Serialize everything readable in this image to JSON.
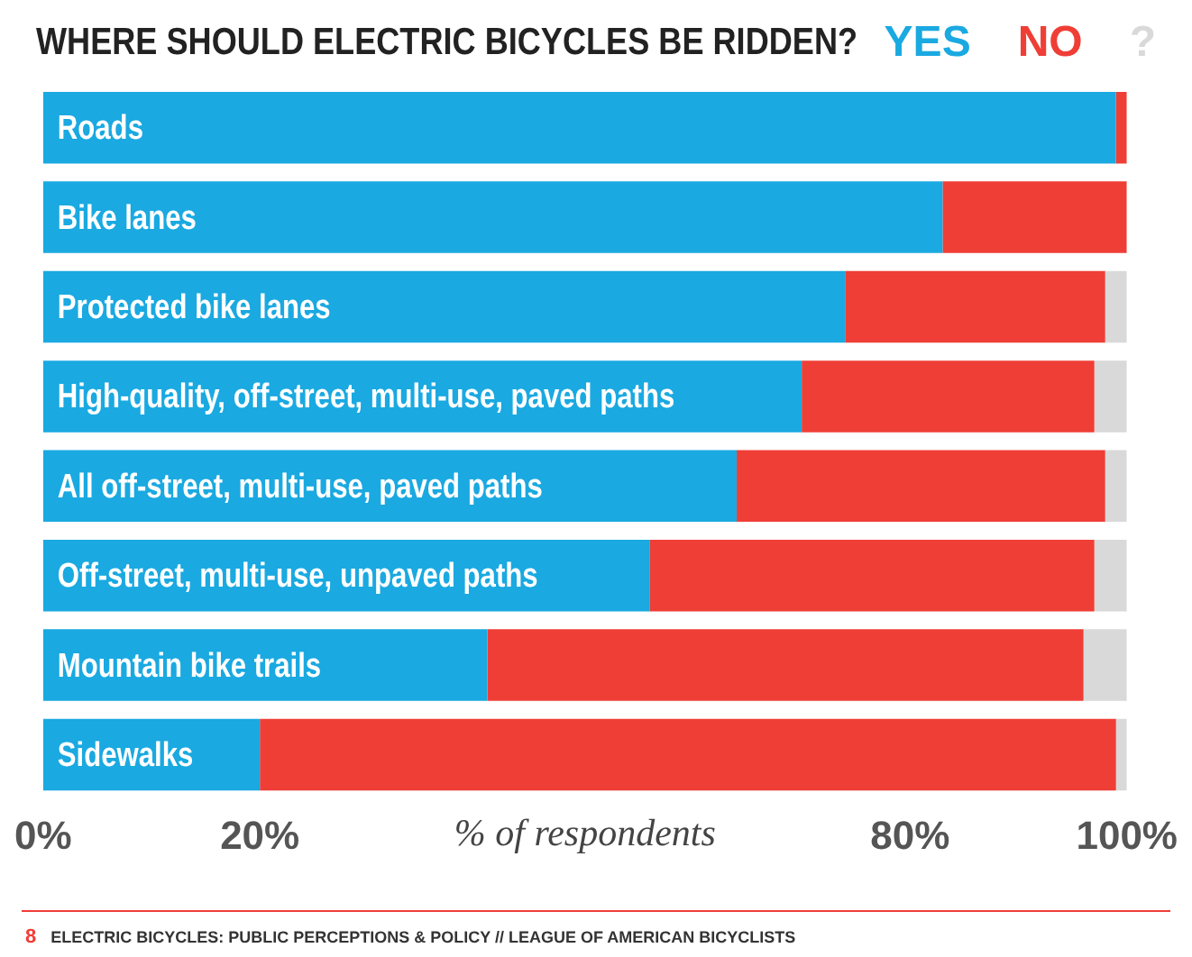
{
  "chart_data": {
    "type": "bar",
    "orientation": "horizontal",
    "stacked": true,
    "title": "WHERE SHOULD ELECTRIC BICYCLES BE RIDDEN?",
    "xlabel": "% of respondents",
    "categories": [
      "Roads",
      "Bike lanes",
      "Protected bike lanes",
      "High-quality, off-street, multi-use, paved paths",
      "All off-street, multi-use, paved paths",
      "Off-street, multi-use, unpaved paths",
      "Mountain bike trails",
      "Sidewalks"
    ],
    "series": [
      {
        "name": "YES",
        "color": "#1aa9e1",
        "values": [
          99,
          83,
          74,
          70,
          64,
          56,
          41,
          20
        ]
      },
      {
        "name": "NO",
        "color": "#ef3e36",
        "values": [
          1,
          17,
          24,
          27,
          34,
          41,
          55,
          79
        ]
      },
      {
        "name": "?",
        "color": "#d9d9d9",
        "values": [
          0,
          0,
          2,
          3,
          2,
          3,
          4,
          1
        ]
      }
    ],
    "xlim": [
      0,
      100
    ],
    "xticks": [
      {
        "value": 0,
        "label": "0%"
      },
      {
        "value": 20,
        "label": "20%"
      },
      {
        "value": 80,
        "label": "80%"
      },
      {
        "value": 100,
        "label": "100%"
      }
    ],
    "grid": false,
    "legend": "top right",
    "annotations": [
      "8",
      "ELECTRIC BICYCLES: PUBLIC PERCEPTIONS & POLICY // LEAGUE OF AMERICAN BICYCLISTS"
    ]
  }
}
